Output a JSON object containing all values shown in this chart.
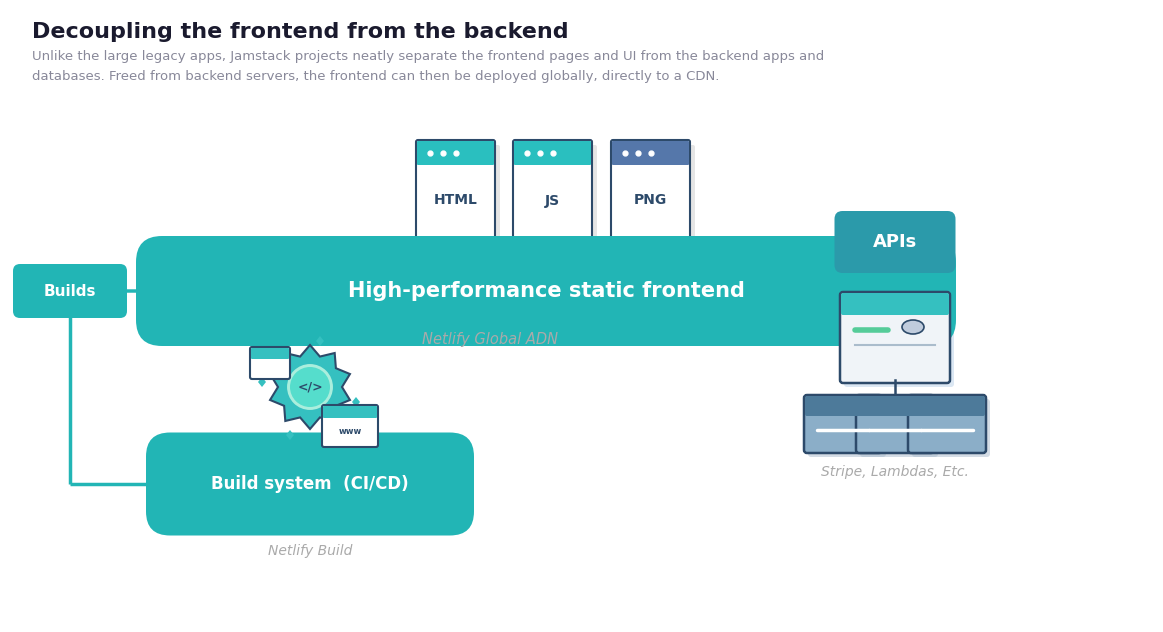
{
  "title": "Decoupling the frontend from the backend",
  "subtitle_line1": "Unlike the large legacy apps, Jamstack projects neatly separate the frontend pages and UI from the backend apps and",
  "subtitle_line2": "databases. Freed from backend servers, the frontend can then be deployed globally, directly to a CDN.",
  "bg_color": "#ffffff",
  "teal_color": "#22b5b5",
  "apis_color": "#2b9aaa",
  "text_dark": "#1a1a2e",
  "text_gray": "#999999",
  "static_frontend_label": "High-performance static frontend",
  "netlify_adn_label": "Netlify Global ADN",
  "builds_label": "Builds",
  "build_system_label": "Build system  (CI/CD)",
  "netlify_build_label": "Netlify Build",
  "apis_label": "APIs",
  "stripe_label": "Stripe, Lambdas, Etc.",
  "file_labels": [
    "HTML",
    "JS",
    "PNG"
  ],
  "file_header_teal": "#2abfbf",
  "file_header_gray": "#5577aa",
  "icon_border": "#2d4a6a",
  "icon_light": "#e8f4f8",
  "icon_teal_light": "#40cccc",
  "db_fill": "#8baec8",
  "db_border": "#2d4a6a",
  "db_header": "#5b8faa"
}
